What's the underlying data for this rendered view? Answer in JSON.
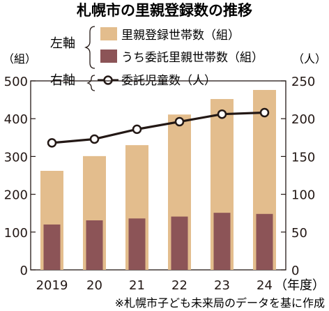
{
  "colors": {
    "registered": "#e3bd8d",
    "commissioned": "#8c5457",
    "line": "#231815",
    "text": "#231815"
  },
  "chart_data": {
    "type": "bar",
    "title": "札幌市の里親登録数の推移",
    "categories": [
      "2019",
      "20",
      "21",
      "22",
      "23",
      "24"
    ],
    "x_unit_label": "（年度）",
    "left_axis": {
      "group_label": "左軸",
      "unit_label": "（組）",
      "range": [
        0,
        500
      ],
      "ticks": [
        "0",
        "100",
        "200",
        "300",
        "400",
        "500"
      ]
    },
    "right_axis": {
      "group_label": "右軸",
      "unit_label": "（人）",
      "range": [
        0,
        250
      ],
      "ticks": [
        "0",
        "50",
        "100",
        "150",
        "200",
        "250"
      ]
    },
    "series": [
      {
        "name": "里親登録世帯数（組）",
        "type": "bar",
        "axis": "left",
        "values": [
          262,
          301,
          330,
          411,
          452,
          476
        ]
      },
      {
        "name": "うち委託里親世帯数（組）",
        "type": "bar",
        "axis": "left",
        "values": [
          120,
          131,
          136,
          141,
          151,
          148
        ]
      },
      {
        "name": "委託児童数（人）",
        "type": "line",
        "axis": "right",
        "values": [
          168,
          173,
          186,
          196,
          206,
          208
        ]
      }
    ],
    "source_note": "※札幌市子ども未来局のデータを基に作成"
  }
}
